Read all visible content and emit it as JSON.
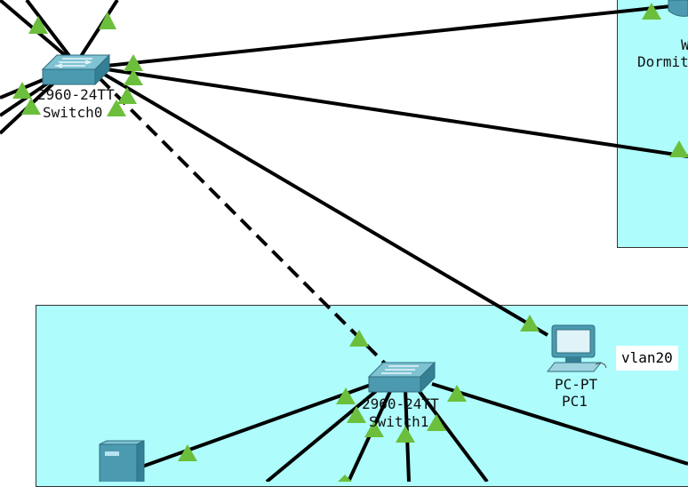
{
  "colors": {
    "zone": "#aefcfc",
    "link": "#000000",
    "port": "#6cbf3c",
    "device": "#4b9ab0"
  },
  "switch0": {
    "model": "2960-24TT",
    "name": "Switch0"
  },
  "switch1": {
    "model": "2960-24TT",
    "name": "Switch1"
  },
  "pc1": {
    "model": "PC-PT",
    "name": "PC1",
    "vlan_note": "vlan20"
  },
  "dormitory": {
    "label_top": "W",
    "label": "Dormit"
  },
  "icons": {
    "switch": "switch-icon",
    "pc": "pc-icon",
    "server": "server-icon",
    "port": "port-status-triangle-icon"
  }
}
